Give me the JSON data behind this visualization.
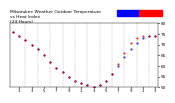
{
  "title": "Milwaukee Weather Outdoor Temperature\nvs Heat Index\n(24 Hours)",
  "title_fontsize": 3.2,
  "bg_color": "#ffffff",
  "plot_bg_color": "#ffffff",
  "grid_color": "#999999",
  "temp_color": "#0000dd",
  "heat_color": "#dd0000",
  "legend_bar_blue": "#0000ff",
  "legend_bar_red": "#ff0000",
  "marker_size": 0.9,
  "ylim": [
    50,
    80
  ],
  "yticks": [
    50,
    55,
    60,
    65,
    70,
    75,
    80
  ],
  "ytick_labels": [
    "50",
    "55",
    "60",
    "65",
    "70",
    "75",
    "80"
  ],
  "ylabel_fontsize": 3.0,
  "xlabel_fontsize": 2.8,
  "x_hours": [
    0,
    1,
    2,
    3,
    4,
    5,
    6,
    7,
    8,
    9,
    10,
    11,
    12,
    13,
    14,
    15,
    16,
    17,
    18,
    19,
    20,
    21,
    22,
    23
  ],
  "temp_values": [
    76,
    74,
    72,
    70,
    68,
    65,
    62,
    59,
    57,
    55,
    53,
    52,
    51,
    50,
    51,
    53,
    56,
    60,
    64,
    68,
    71,
    73,
    74,
    74
  ],
  "heat_values": [
    76,
    74,
    72,
    70,
    68,
    65,
    62,
    59,
    57,
    55,
    53,
    52,
    51,
    50,
    51,
    53,
    56,
    60,
    64,
    68,
    71,
    73,
    74,
    74
  ],
  "heat_offsets": [
    0,
    0,
    0,
    0,
    0,
    0,
    0,
    0,
    0,
    0,
    0,
    0,
    0,
    0,
    0,
    0,
    0,
    1,
    2,
    3,
    2,
    1,
    0,
    0
  ],
  "vgrid_positions": [
    2,
    4,
    6,
    8,
    10,
    12,
    14,
    16,
    18,
    20,
    22
  ],
  "xlim": [
    -0.5,
    23.5
  ],
  "xtick_positions": [
    1,
    3,
    5,
    7,
    9,
    11,
    13,
    15,
    17,
    19,
    21,
    23
  ],
  "xtick_labels": [
    "1",
    "3",
    "5",
    "7",
    "9",
    "1",
    "3",
    "5",
    "7",
    "9",
    "1",
    "3"
  ]
}
